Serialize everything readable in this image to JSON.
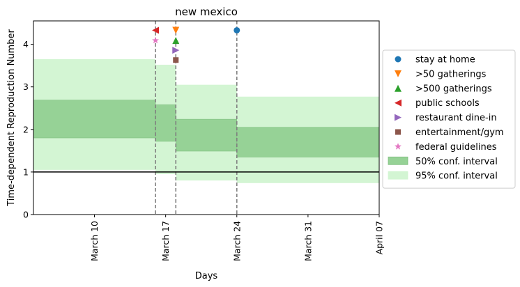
{
  "chart_data": {
    "type": "area",
    "title": "new mexico",
    "xlabel": "Days",
    "ylabel": "Time-dependent Reproduction Number",
    "xlim": [
      "2020-03-04",
      "2020-04-07"
    ],
    "ylim": [
      0,
      4.55
    ],
    "xticks": [
      {
        "date": "2020-03-10",
        "label": "March 10"
      },
      {
        "date": "2020-03-17",
        "label": "March 17"
      },
      {
        "date": "2020-03-24",
        "label": "March 24"
      },
      {
        "date": "2020-03-31",
        "label": "March 31"
      },
      {
        "date": "2020-04-07",
        "label": "April 07"
      }
    ],
    "yticks": [
      0,
      1,
      2,
      3,
      4
    ],
    "reference_line": {
      "y": 1,
      "color": "#000000"
    },
    "intervention_lines": [
      "2020-03-16",
      "2020-03-18",
      "2020-03-24"
    ],
    "intervals_95": [
      {
        "start": "2020-03-04",
        "end": "2020-03-16",
        "low": 1.05,
        "high": 3.65
      },
      {
        "start": "2020-03-16",
        "end": "2020-03-18",
        "low": 0.95,
        "high": 3.52
      },
      {
        "start": "2020-03-18",
        "end": "2020-03-24",
        "low": 0.8,
        "high": 3.05
      },
      {
        "start": "2020-03-24",
        "end": "2020-04-07",
        "low": 0.74,
        "high": 2.77
      }
    ],
    "intervals_50": [
      {
        "start": "2020-03-04",
        "end": "2020-03-16",
        "low": 1.8,
        "high": 2.69
      },
      {
        "start": "2020-03-16",
        "end": "2020-03-18",
        "low": 1.72,
        "high": 2.58
      },
      {
        "start": "2020-03-18",
        "end": "2020-03-24",
        "low": 1.49,
        "high": 2.24
      },
      {
        "start": "2020-03-24",
        "end": "2020-04-07",
        "low": 1.35,
        "high": 2.05
      }
    ],
    "events": [
      {
        "name": "stay at home",
        "date": "2020-03-24",
        "y": 4.33,
        "marker": "circle",
        "color": "#1f77b4"
      },
      {
        "name": ">50 gatherings",
        "date": "2020-03-18",
        "y": 4.33,
        "marker": "triangle-down",
        "color": "#ff7f0e"
      },
      {
        "name": ">500 gatherings",
        "date": "2020-03-18",
        "y": 4.09,
        "marker": "triangle-up",
        "color": "#2ca02c"
      },
      {
        "name": "public schools",
        "date": "2020-03-16",
        "y": 4.33,
        "marker": "triangle-left",
        "color": "#d62728"
      },
      {
        "name": "restaurant dine-in",
        "date": "2020-03-18",
        "y": 3.86,
        "marker": "triangle-right",
        "color": "#9467bd"
      },
      {
        "name": "entertainment/gym",
        "date": "2020-03-18",
        "y": 3.63,
        "marker": "square",
        "color": "#8c564b"
      },
      {
        "name": "federal guidelines",
        "date": "2020-03-16",
        "y": 4.09,
        "marker": "star",
        "color": "#e377c2"
      }
    ],
    "legend": {
      "placement": "right",
      "band_entries": [
        {
          "name": "50% conf. interval",
          "color": "#96d296"
        },
        {
          "name": "95% conf. interval",
          "color": "#d3f5d3"
        }
      ]
    },
    "colors": {
      "band_50": "#96d296",
      "band_50_edge": "#7fbf7f",
      "band_95": "#d3f5d3",
      "vline": "#7f7f7f"
    }
  }
}
